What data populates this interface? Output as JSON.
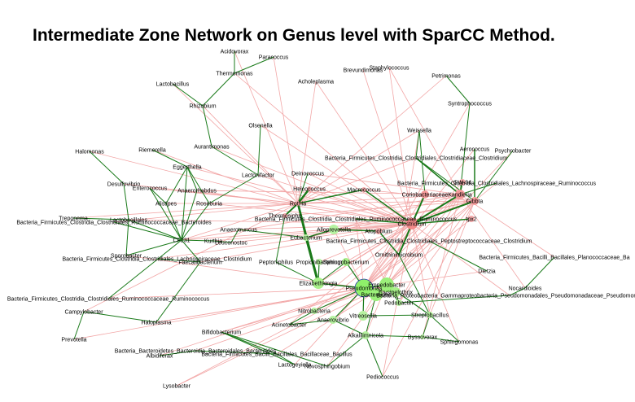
{
  "title": "Intermediate Zone Network on Genus level with SparCC Method.",
  "colors": {
    "positive_edge": "#1a7a1a",
    "negative_edge": "#f2a6a6",
    "green_node": "#9cf07a",
    "red_node": "#f08080"
  },
  "nodes": [
    {
      "id": "acidovorax",
      "label": "Acidovorax"
    },
    {
      "id": "paracoccus",
      "label": "Paracoccus"
    },
    {
      "id": "thermomonas",
      "label": "Thermomonas"
    },
    {
      "id": "lactobacillus",
      "label": "Lactobacillus"
    },
    {
      "id": "rhizobium",
      "label": "Rhizobium"
    },
    {
      "id": "acholeplasma",
      "label": "Acholeplasma"
    },
    {
      "id": "brevundimonas",
      "label": "Brevundimonas"
    },
    {
      "id": "staphylococcus",
      "label": "Staphylococcus"
    },
    {
      "id": "petrimonas",
      "label": "Petrimonas"
    },
    {
      "id": "syntrophococcus",
      "label": "Syntrophococcus"
    },
    {
      "id": "olsenella",
      "label": "Olsenella"
    },
    {
      "id": "weissella",
      "label": "Weissella"
    },
    {
      "id": "aerococcus",
      "label": "Aerococcus"
    },
    {
      "id": "psychrobacter",
      "label": "Psychrobacter"
    },
    {
      "id": "halomonas",
      "label": "Halomonas"
    },
    {
      "id": "riemerella",
      "label": "Riemerella"
    },
    {
      "id": "aurantimonas",
      "label": "Aurantimonas"
    },
    {
      "id": "clost_clost",
      "label": "Bacteria_Firmicutes_Clostridia_Clostridiales_Clostridiaceae_Clostridium"
    },
    {
      "id": "eggerthella",
      "label": "Eggerthella"
    },
    {
      "id": "lactonifactor",
      "label": "Lactonifactor"
    },
    {
      "id": "deinococcus",
      "label": "Deinococcus"
    },
    {
      "id": "desulfovibrio",
      "label": "Desulfovibrio"
    },
    {
      "id": "enterococcus",
      "label": "Enterococcus"
    },
    {
      "id": "anaerorhabdus",
      "label": "Anaerorhabdus"
    },
    {
      "id": "helcococcus",
      "label": "Helcococcus"
    },
    {
      "id": "macrococcus",
      "label": "Macrococcus"
    },
    {
      "id": "lachno_rumino",
      "label": "Bacteria_Firmicutes_Clostridia_Clostridiales_Lachnospiraceae_Ruminococcus"
    },
    {
      "id": "gw34",
      "label": "GW-34"
    },
    {
      "id": "coriobacteriaceae",
      "label": "Coriobacteriaceae"
    },
    {
      "id": "kandleria",
      "label": "Kandleria"
    },
    {
      "id": "gibbta",
      "label": "Gibbta"
    },
    {
      "id": "alistipes",
      "label": "Alistipes"
    },
    {
      "id": "roseburia",
      "label": "Roseburia"
    },
    {
      "id": "rothia",
      "label": "Rothia"
    },
    {
      "id": "treponema",
      "label": "Treponema"
    },
    {
      "id": "lactobacillales",
      "label": "Lactobacillales"
    },
    {
      "id": "rumino_bacteroides",
      "label": "Bacteria_Firmicutes_Clostridia_Clostridiales_Ruminococcaceae_Bacteroides"
    },
    {
      "id": "thermosipho",
      "label": "Thermosipho"
    },
    {
      "id": "bact_clost_rumino",
      "label": "Bacteria_Firmicutes_Clostridia_Clostridiales_Ruminococcaceae_Ruminococcus"
    },
    {
      "id": "clostridium",
      "label": "Clostridium"
    },
    {
      "id": "tpx2",
      "label": "tpx2"
    },
    {
      "id": "anaerotruncus",
      "label": "Anaerotruncus"
    },
    {
      "id": "alloprevotella",
      "label": "Alloprevotella"
    },
    {
      "id": "eubacterium",
      "label": "Eubacterium"
    },
    {
      "id": "atopobium",
      "label": "Atopobium"
    },
    {
      "id": "cf231",
      "label": "CF231"
    },
    {
      "id": "kurthia",
      "label": "Kurthia"
    },
    {
      "id": "leuconostoc",
      "label": "Leuconostoc"
    },
    {
      "id": "clost_pepto",
      "label": "Bacteria_Firmicutes_Clostridia_Clostridiales_Peptostreptococcaceae_Clostridium"
    },
    {
      "id": "ornithinimicrobium",
      "label": "Ornithinimicrobium"
    },
    {
      "id": "sporobacter",
      "label": "Sporobacter"
    },
    {
      "id": "faecalibacterium",
      "label": "Faecalibacterium"
    },
    {
      "id": "lachno_clost",
      "label": "Bacteria_Firmicutes_Clostridia_Clostridiales_Lachnospiraceae_Clostridium"
    },
    {
      "id": "pepto",
      "label": "Peptoniphilus"
    },
    {
      "id": "propionibacterium",
      "label": "Propionibacterium"
    },
    {
      "id": "sphingobacterium",
      "label": "Sphingobacterium"
    },
    {
      "id": "planococc",
      "label": "Bacteria_Firmicutes_Bacilli_Bacillales_Planococcaceae_Ba"
    },
    {
      "id": "dietzia",
      "label": "Dietzia"
    },
    {
      "id": "elizabethkingia",
      "label": "Elizabethkingia"
    },
    {
      "id": "pseudomonas",
      "label": "Pseudomonas"
    },
    {
      "id": "empedobacter",
      "label": "Empedobacter"
    },
    {
      "id": "erysipelothrix",
      "label": "Erysipelothrix"
    },
    {
      "id": "bacteroides",
      "label": "Bacteroides"
    },
    {
      "id": "pseudo_pseudo",
      "label": "Bacteria_Proteobacteria_Gammaproteobacteria_Pseudomonadales_Pseudomonadaceae_Pseudomonas"
    },
    {
      "id": "nocardioides",
      "label": "Nocardioides"
    },
    {
      "id": "bact_clost_rumino2",
      "label": "Bacteria_Firmicutes_Clostridia_Clostridiales_Ruminococcaceae_Ruminococcus"
    },
    {
      "id": "campylobacter",
      "label": "Campylobacter"
    },
    {
      "id": "haloplasma",
      "label": "Haloplasma"
    },
    {
      "id": "nitrobacteria",
      "label": "Nitrobacteria"
    },
    {
      "id": "pedobacter",
      "label": "Pedobacter"
    },
    {
      "id": "acinetobacter",
      "label": "Acinetobacter"
    },
    {
      "id": "anaerovibrio",
      "label": "Anaerovibrio"
    },
    {
      "id": "vitreoscilla",
      "label": "Vitreoscilla"
    },
    {
      "id": "streptobacillus",
      "label": "Streptobacillus"
    },
    {
      "id": "prevotella",
      "label": "Prevotella"
    },
    {
      "id": "bifidobacterium",
      "label": "Bifidobacterium"
    },
    {
      "id": "alkalilimnicola",
      "label": "Alkalilimnicola"
    },
    {
      "id": "byssovorax",
      "label": "Byssovorax"
    },
    {
      "id": "sphingomonas",
      "label": "Sphingomonas"
    },
    {
      "id": "bacteroidetes",
      "label": "Bacteria_Bacteroidetes_Bacteroidia_Bacteroidales_Bacteroides"
    },
    {
      "id": "albidiferax",
      "label": "Albidiferax"
    },
    {
      "id": "bacilli_bacillus",
      "label": "Bacteria_Firmicutes_Bacilli_Bacillales_Bacillaceae_Bacillus"
    },
    {
      "id": "lactogeyiella",
      "label": "Lactogeyiella"
    },
    {
      "id": "hespingobium",
      "label": "Novosphingobium"
    },
    {
      "id": "pediococcus",
      "label": "Pediococcus"
    },
    {
      "id": "lysobacter",
      "label": "Lysobacter"
    }
  ]
}
